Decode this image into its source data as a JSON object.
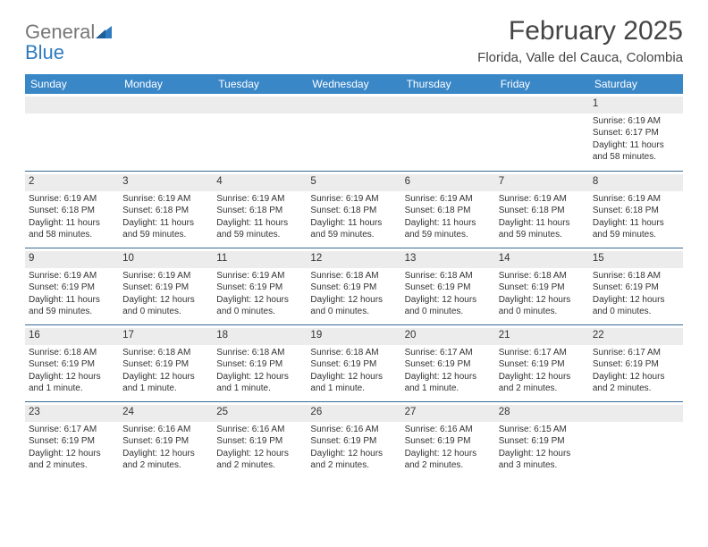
{
  "brand": {
    "name_line1": "General",
    "name_line2": "Blue",
    "logo_color": "#2f7bbf",
    "text_color": "#777777"
  },
  "header": {
    "month_title": "February 2025",
    "location": "Florida, Valle del Cauca, Colombia"
  },
  "colors": {
    "header_bg": "#3a87c8",
    "header_text": "#ffffff",
    "cell_border": "#3a6a95",
    "daynum_bg": "#ececec",
    "body_text": "#333333"
  },
  "weekdays": [
    "Sunday",
    "Monday",
    "Tuesday",
    "Wednesday",
    "Thursday",
    "Friday",
    "Saturday"
  ],
  "layout": {
    "columns": 7,
    "rows": 5,
    "start_weekday_index": 6,
    "days_in_month": 28
  },
  "days": [
    {
      "n": 1,
      "sunrise": "6:19 AM",
      "sunset": "6:17 PM",
      "daylight": "11 hours and 58 minutes."
    },
    {
      "n": 2,
      "sunrise": "6:19 AM",
      "sunset": "6:18 PM",
      "daylight": "11 hours and 58 minutes."
    },
    {
      "n": 3,
      "sunrise": "6:19 AM",
      "sunset": "6:18 PM",
      "daylight": "11 hours and 59 minutes."
    },
    {
      "n": 4,
      "sunrise": "6:19 AM",
      "sunset": "6:18 PM",
      "daylight": "11 hours and 59 minutes."
    },
    {
      "n": 5,
      "sunrise": "6:19 AM",
      "sunset": "6:18 PM",
      "daylight": "11 hours and 59 minutes."
    },
    {
      "n": 6,
      "sunrise": "6:19 AM",
      "sunset": "6:18 PM",
      "daylight": "11 hours and 59 minutes."
    },
    {
      "n": 7,
      "sunrise": "6:19 AM",
      "sunset": "6:18 PM",
      "daylight": "11 hours and 59 minutes."
    },
    {
      "n": 8,
      "sunrise": "6:19 AM",
      "sunset": "6:18 PM",
      "daylight": "11 hours and 59 minutes."
    },
    {
      "n": 9,
      "sunrise": "6:19 AM",
      "sunset": "6:19 PM",
      "daylight": "11 hours and 59 minutes."
    },
    {
      "n": 10,
      "sunrise": "6:19 AM",
      "sunset": "6:19 PM",
      "daylight": "12 hours and 0 minutes."
    },
    {
      "n": 11,
      "sunrise": "6:19 AM",
      "sunset": "6:19 PM",
      "daylight": "12 hours and 0 minutes."
    },
    {
      "n": 12,
      "sunrise": "6:18 AM",
      "sunset": "6:19 PM",
      "daylight": "12 hours and 0 minutes."
    },
    {
      "n": 13,
      "sunrise": "6:18 AM",
      "sunset": "6:19 PM",
      "daylight": "12 hours and 0 minutes."
    },
    {
      "n": 14,
      "sunrise": "6:18 AM",
      "sunset": "6:19 PM",
      "daylight": "12 hours and 0 minutes."
    },
    {
      "n": 15,
      "sunrise": "6:18 AM",
      "sunset": "6:19 PM",
      "daylight": "12 hours and 0 minutes."
    },
    {
      "n": 16,
      "sunrise": "6:18 AM",
      "sunset": "6:19 PM",
      "daylight": "12 hours and 1 minute."
    },
    {
      "n": 17,
      "sunrise": "6:18 AM",
      "sunset": "6:19 PM",
      "daylight": "12 hours and 1 minute."
    },
    {
      "n": 18,
      "sunrise": "6:18 AM",
      "sunset": "6:19 PM",
      "daylight": "12 hours and 1 minute."
    },
    {
      "n": 19,
      "sunrise": "6:18 AM",
      "sunset": "6:19 PM",
      "daylight": "12 hours and 1 minute."
    },
    {
      "n": 20,
      "sunrise": "6:17 AM",
      "sunset": "6:19 PM",
      "daylight": "12 hours and 1 minute."
    },
    {
      "n": 21,
      "sunrise": "6:17 AM",
      "sunset": "6:19 PM",
      "daylight": "12 hours and 2 minutes."
    },
    {
      "n": 22,
      "sunrise": "6:17 AM",
      "sunset": "6:19 PM",
      "daylight": "12 hours and 2 minutes."
    },
    {
      "n": 23,
      "sunrise": "6:17 AM",
      "sunset": "6:19 PM",
      "daylight": "12 hours and 2 minutes."
    },
    {
      "n": 24,
      "sunrise": "6:16 AM",
      "sunset": "6:19 PM",
      "daylight": "12 hours and 2 minutes."
    },
    {
      "n": 25,
      "sunrise": "6:16 AM",
      "sunset": "6:19 PM",
      "daylight": "12 hours and 2 minutes."
    },
    {
      "n": 26,
      "sunrise": "6:16 AM",
      "sunset": "6:19 PM",
      "daylight": "12 hours and 2 minutes."
    },
    {
      "n": 27,
      "sunrise": "6:16 AM",
      "sunset": "6:19 PM",
      "daylight": "12 hours and 2 minutes."
    },
    {
      "n": 28,
      "sunrise": "6:15 AM",
      "sunset": "6:19 PM",
      "daylight": "12 hours and 3 minutes."
    }
  ],
  "labels": {
    "sunrise": "Sunrise:",
    "sunset": "Sunset:",
    "daylight": "Daylight:"
  }
}
